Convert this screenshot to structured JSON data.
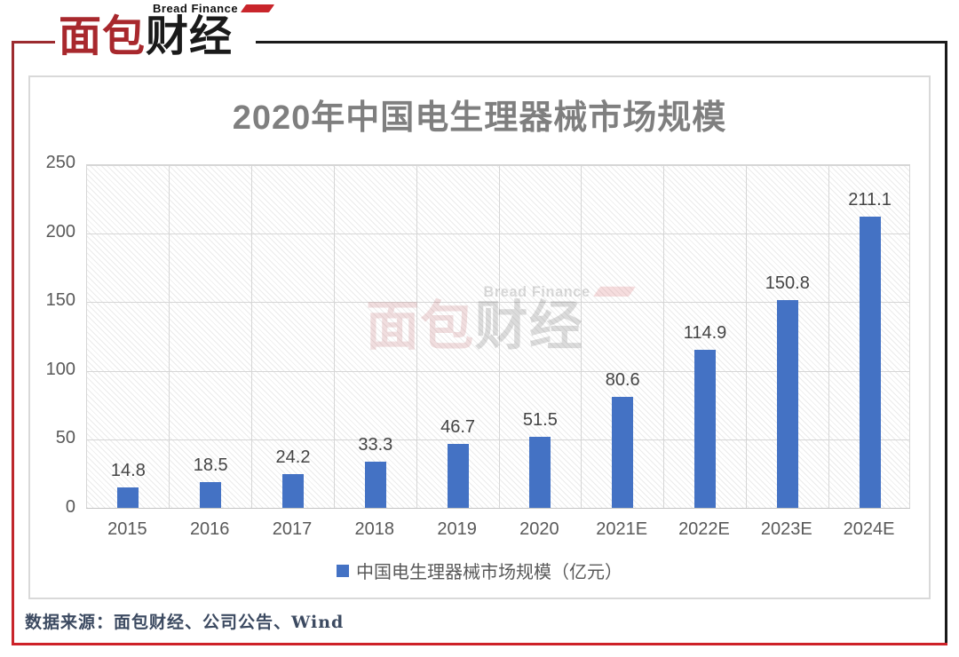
{
  "brand": {
    "name_en": "Bread Finance",
    "name_cn_red": "面包",
    "name_cn_black": "财经"
  },
  "chart_data": {
    "type": "bar",
    "title": "2020年中国电生理器械市场规模",
    "categories": [
      "2015",
      "2016",
      "2017",
      "2018",
      "2019",
      "2020",
      "2021E",
      "2022E",
      "2023E",
      "2024E"
    ],
    "values": [
      14.8,
      18.5,
      24.2,
      33.3,
      46.7,
      51.5,
      80.6,
      114.9,
      150.8,
      211.1
    ],
    "series": [
      {
        "name": "中国电生理器械市场规模（亿元）",
        "values": [
          14.8,
          18.5,
          24.2,
          33.3,
          46.7,
          51.5,
          80.6,
          114.9,
          150.8,
          211.1
        ]
      }
    ],
    "legend_label": "中国电生理器械市场规模（亿元）",
    "xlabel": "",
    "ylabel": "",
    "ylim": [
      0,
      250
    ],
    "yticks": [
      0,
      50,
      100,
      150,
      200,
      250
    ],
    "grid": true,
    "legend_position": "bottom",
    "bar_color": "#4472C4",
    "plot_background": "diagonal-hatch"
  },
  "footer": {
    "source": "数据来源：面包财经、公司公告、Wind"
  },
  "colors": {
    "bar": "#4472C4",
    "title_text": "#7F7F7F",
    "axis_text": "#595959",
    "value_label_text": "#444444",
    "frame_dark_red": "#9C2B2F",
    "frame_red": "#CE2128",
    "frame_black": "#1A1A1A",
    "card_border": "#D9D9D9",
    "source_text": "#3C4A61"
  }
}
